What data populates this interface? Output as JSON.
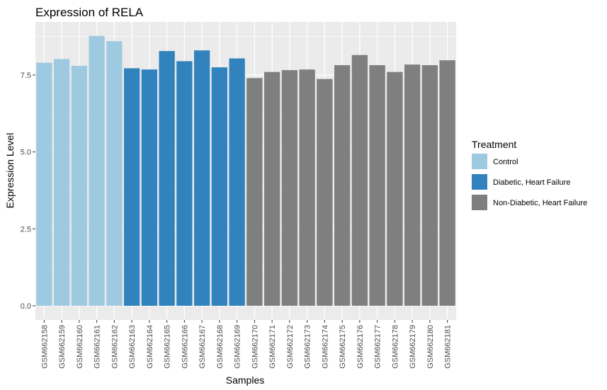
{
  "chart_data": {
    "type": "bar",
    "title": "Expression of  RELA",
    "xlabel": "Samples",
    "ylabel": "Expression Level",
    "ylim": [
      0,
      9
    ],
    "yticks": [
      "0.0",
      "2.5",
      "5.0",
      "7.5"
    ],
    "ytick_values": [
      0,
      2.5,
      5.0,
      7.5
    ],
    "grid": true,
    "legend_position": "right",
    "legend": {
      "title": "Treatment",
      "entries": [
        {
          "name": "Control",
          "color": "#9ecae1"
        },
        {
          "name": "Diabetic, Heart Failure",
          "color": "#3182bd"
        },
        {
          "name": "Non-Diabetic, Heart Failure",
          "color": "#7f7f7f"
        }
      ]
    },
    "categories": [
      "GSM662158",
      "GSM662159",
      "GSM662160",
      "GSM662161",
      "GSM662162",
      "GSM662163",
      "GSM662164",
      "GSM662165",
      "GSM662166",
      "GSM662167",
      "GSM662168",
      "GSM662169",
      "GSM662170",
      "GSM662171",
      "GSM662172",
      "GSM662173",
      "GSM662174",
      "GSM662175",
      "GSM662176",
      "GSM662177",
      "GSM662178",
      "GSM662179",
      "GSM662180",
      "GSM662181"
    ],
    "values": [
      7.9,
      8.02,
      7.8,
      8.77,
      8.6,
      7.72,
      7.68,
      8.28,
      7.95,
      8.3,
      7.75,
      8.04,
      7.4,
      7.6,
      7.66,
      7.68,
      7.37,
      7.82,
      8.15,
      7.82,
      7.6,
      7.84,
      7.82,
      7.98
    ],
    "groups": [
      "Control",
      "Control",
      "Control",
      "Control",
      "Control",
      "Diabetic, Heart Failure",
      "Diabetic, Heart Failure",
      "Diabetic, Heart Failure",
      "Diabetic, Heart Failure",
      "Diabetic, Heart Failure",
      "Diabetic, Heart Failure",
      "Diabetic, Heart Failure",
      "Non-Diabetic, Heart Failure",
      "Non-Diabetic, Heart Failure",
      "Non-Diabetic, Heart Failure",
      "Non-Diabetic, Heart Failure",
      "Non-Diabetic, Heart Failure",
      "Non-Diabetic, Heart Failure",
      "Non-Diabetic, Heart Failure",
      "Non-Diabetic, Heart Failure",
      "Non-Diabetic, Heart Failure",
      "Non-Diabetic, Heart Failure",
      "Non-Diabetic, Heart Failure",
      "Non-Diabetic, Heart Failure"
    ]
  }
}
